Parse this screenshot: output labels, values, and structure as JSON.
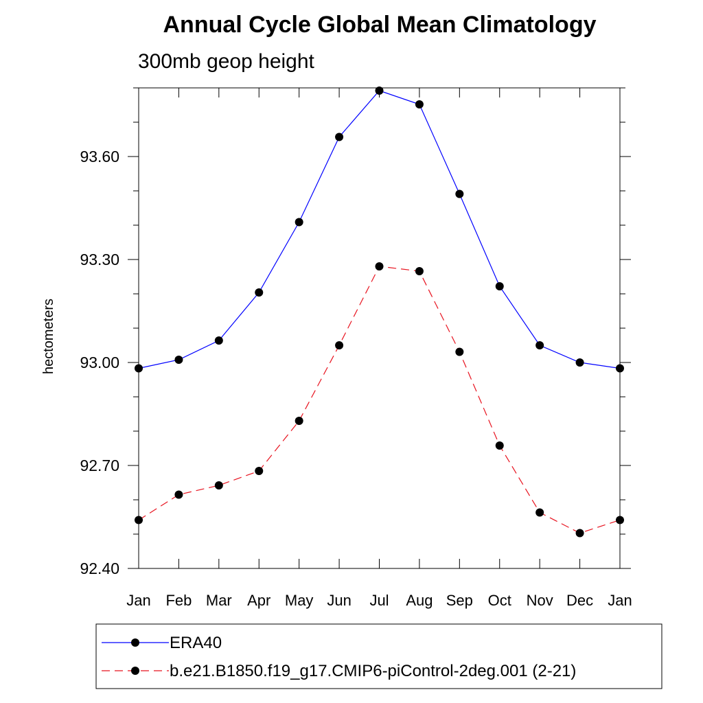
{
  "chart_data": {
    "type": "line",
    "title": "Annual Cycle Global Mean Climatology",
    "subtitle": "300mb geop height",
    "xlabel": "",
    "ylabel": "hectometers",
    "categories": [
      "Jan",
      "Feb",
      "Mar",
      "Apr",
      "May",
      "Jun",
      "Jul",
      "Aug",
      "Sep",
      "Oct",
      "Nov",
      "Dec",
      "Jan"
    ],
    "ylim": [
      92.4,
      93.8
    ],
    "yticks": [
      "92.40",
      "92.70",
      "93.00",
      "93.30",
      "93.60"
    ],
    "series": [
      {
        "name": "ERA40",
        "color": "#0000ff",
        "dash": "solid",
        "marker": "circle",
        "values": [
          92.983,
          93.008,
          93.064,
          93.204,
          93.409,
          93.657,
          93.792,
          93.752,
          93.491,
          93.222,
          93.05,
          93.0,
          92.983
        ]
      },
      {
        "name": "b.e21.B1850.f19_g17.CMIP6-piControl-2deg.001 (2-21)",
        "color": "#e8121e",
        "dash": "dashed",
        "marker": "circle",
        "values": [
          92.541,
          92.615,
          92.642,
          92.684,
          92.83,
          93.05,
          93.28,
          93.266,
          93.031,
          92.758,
          92.563,
          92.503,
          92.541
        ]
      }
    ],
    "legend": "bottom"
  }
}
